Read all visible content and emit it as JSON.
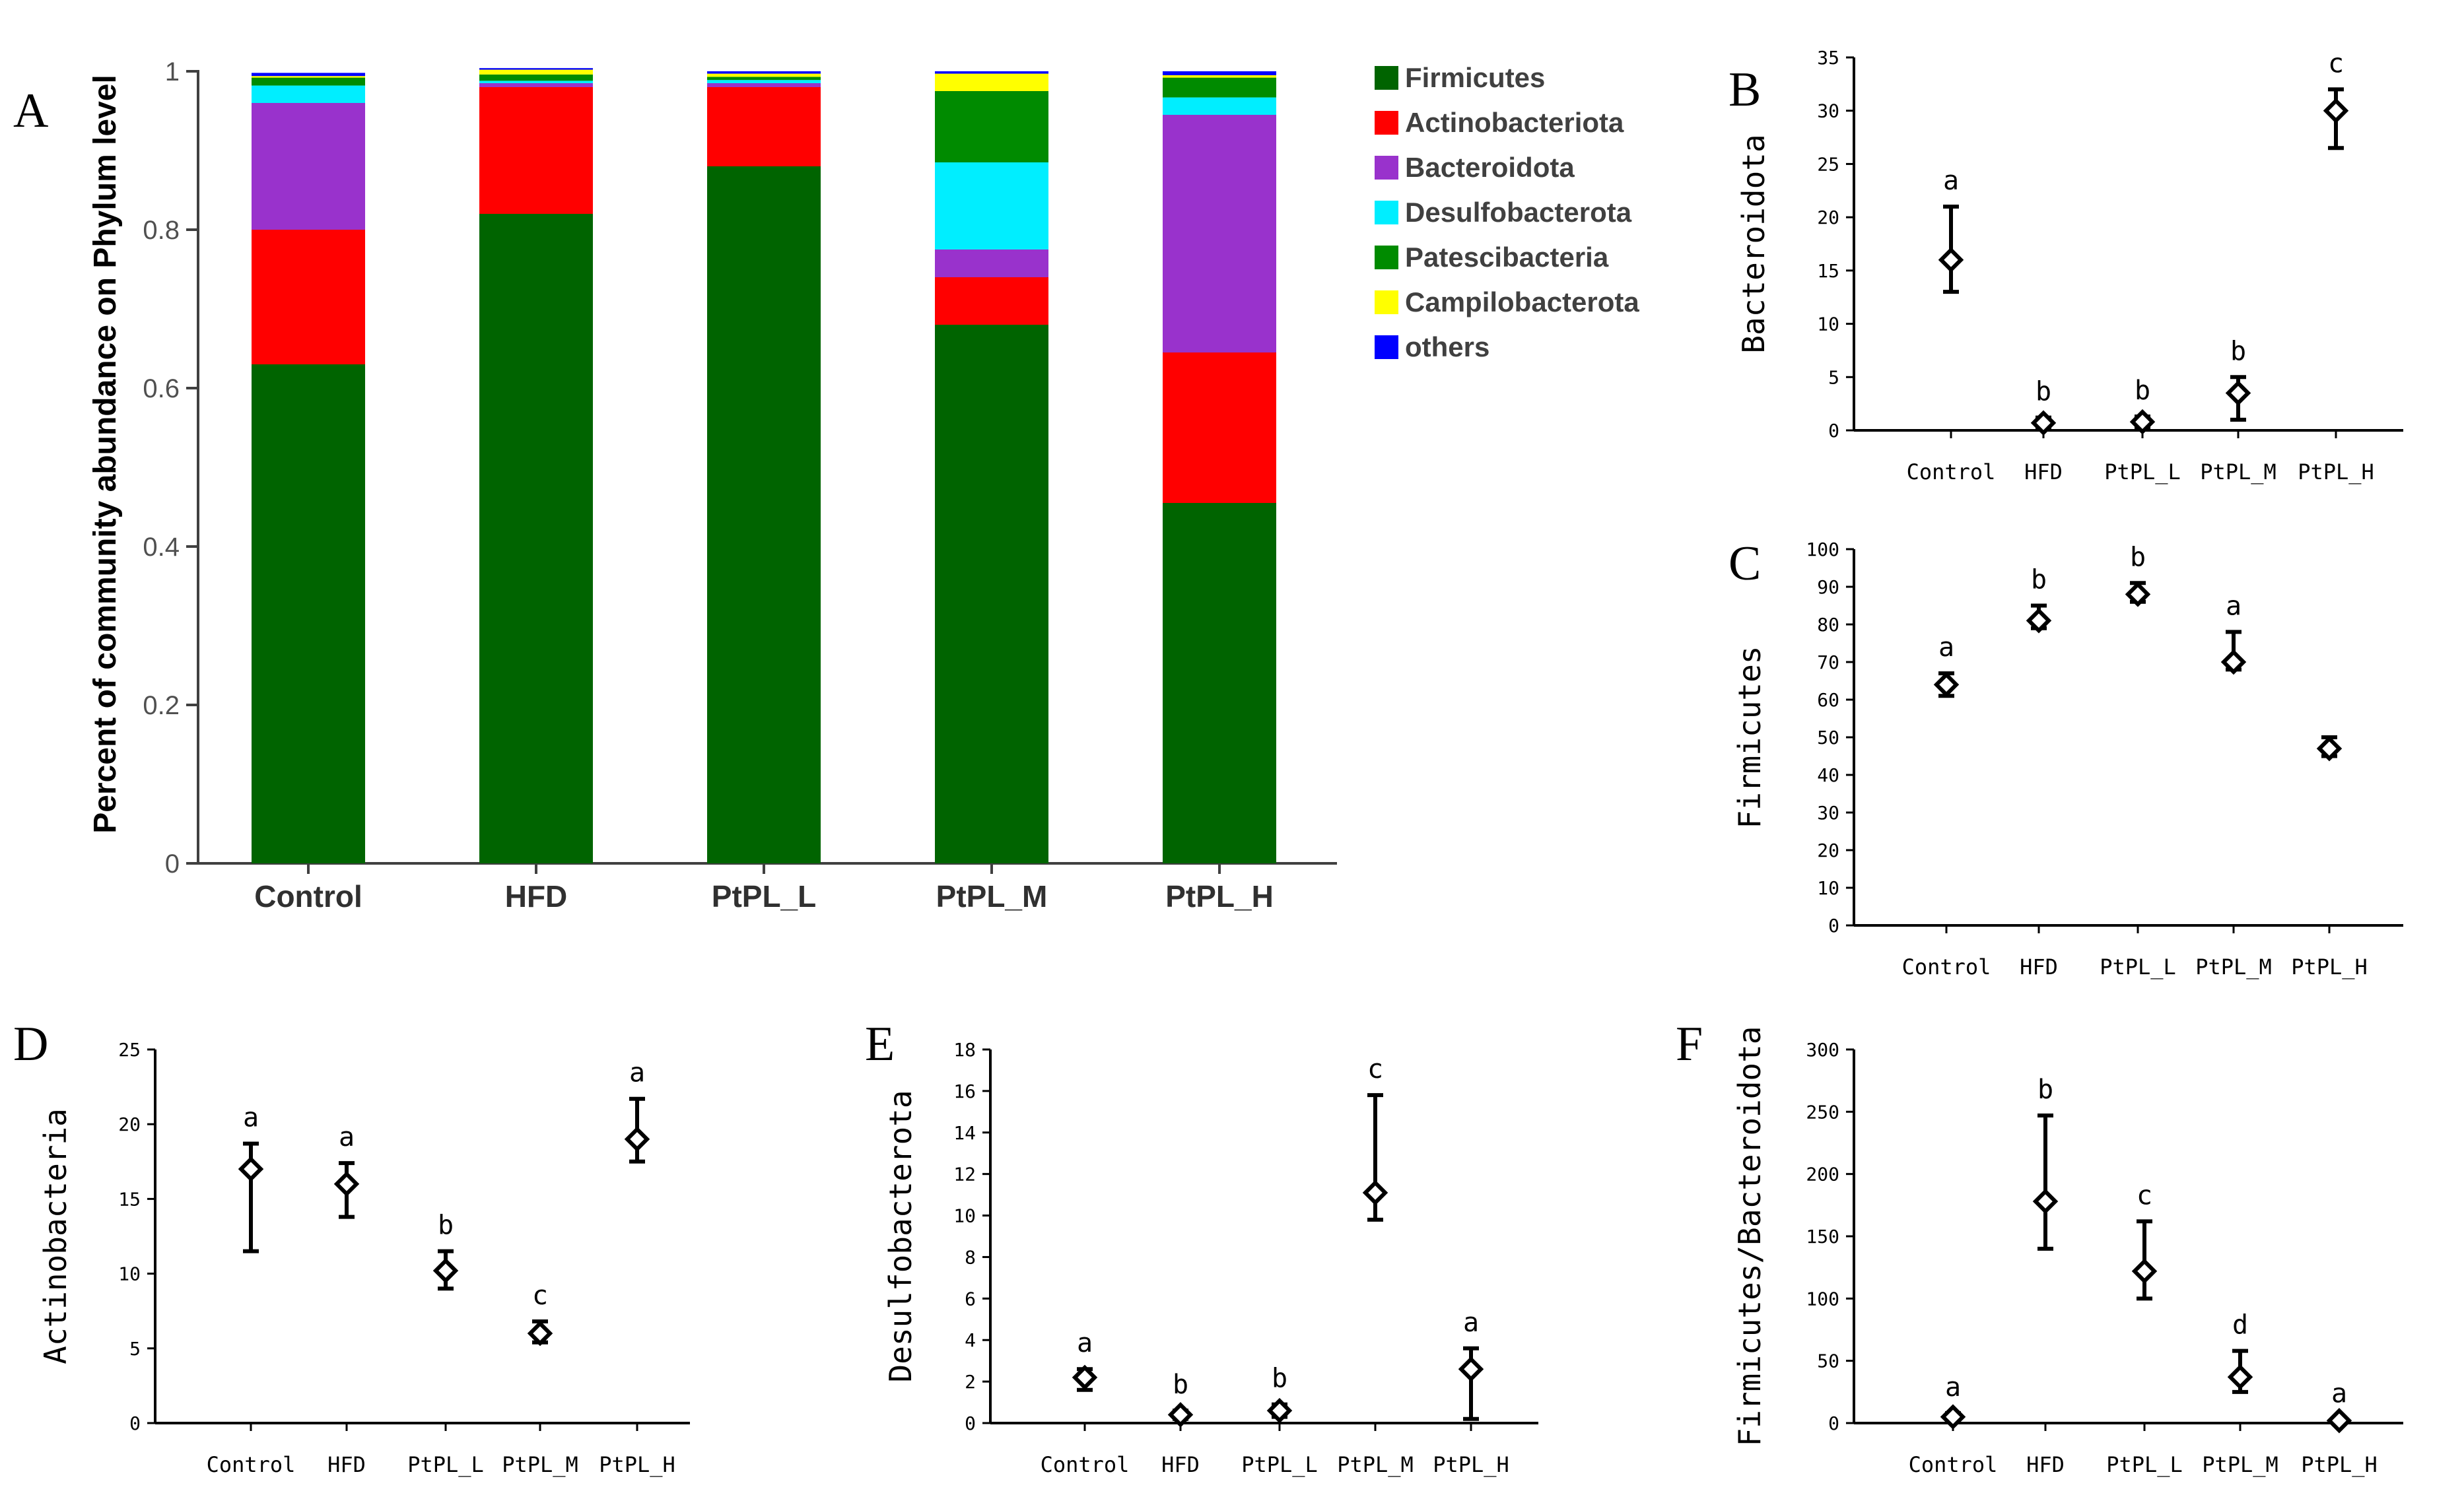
{
  "chart_data": [
    {
      "panel": "A",
      "type": "bar",
      "stacked": true,
      "ylabel": "Percent of community abundance on Phylum level",
      "ylim": [
        0,
        1
      ],
      "yticks": [
        "0",
        "0.2",
        "0.4",
        "0.6",
        "0.8",
        "1"
      ],
      "categories": [
        "Control",
        "HFD",
        "PtPL_L",
        "PtPL_M",
        "PtPL_H"
      ],
      "legend_position": "right",
      "series": [
        {
          "name": "Firmicutes",
          "color": "#006400",
          "values": [
            0.63,
            0.82,
            0.88,
            0.68,
            0.455
          ]
        },
        {
          "name": "Actinobacteriota",
          "color": "#ff0000",
          "values": [
            0.17,
            0.16,
            0.1,
            0.06,
            0.19
          ]
        },
        {
          "name": "Bacteroidota",
          "color": "#9932cc",
          "values": [
            0.16,
            0.005,
            0.005,
            0.035,
            0.3
          ]
        },
        {
          "name": "Desulfobacterota",
          "color": "#00eeff",
          "values": [
            0.022,
            0.003,
            0.004,
            0.11,
            0.022
          ]
        },
        {
          "name": "Patescibacteria",
          "color": "#008b00",
          "values": [
            0.01,
            0.008,
            0.004,
            0.09,
            0.025
          ]
        },
        {
          "name": "Campilobacterota",
          "color": "#ffff00",
          "values": [
            0.002,
            0.006,
            0.004,
            0.022,
            0.003
          ]
        },
        {
          "name": "others",
          "color": "#0000ff",
          "values": [
            0.004,
            0.002,
            0.003,
            0.003,
            0.005
          ]
        }
      ]
    },
    {
      "panel": "B",
      "type": "scatter",
      "ylabel": "Bacteroidota",
      "ylim": [
        0,
        35
      ],
      "yticks": [
        "0",
        "5",
        "10",
        "15",
        "20",
        "25",
        "30",
        "35"
      ],
      "categories": [
        "Control",
        "HFD",
        "PtPL_L",
        "PtPL_M",
        "PtPL_H"
      ],
      "values": [
        16,
        0.7,
        0.8,
        3.5,
        30
      ],
      "err_low": [
        13,
        0.2,
        0.3,
        1,
        26.5
      ],
      "err_high": [
        21,
        1.2,
        1.3,
        5,
        32
      ],
      "letters": [
        "a",
        "b",
        "b",
        "b",
        "c"
      ]
    },
    {
      "panel": "C",
      "type": "scatter",
      "ylabel": "Firmicutes",
      "ylim": [
        0,
        100
      ],
      "yticks": [
        "0",
        "10",
        "20",
        "30",
        "40",
        "50",
        "60",
        "70",
        "80",
        "90",
        "100"
      ],
      "categories": [
        "Control",
        "HFD",
        "PtPL_L",
        "PtPL_M",
        "PtPL_H"
      ],
      "values": [
        64,
        81,
        88,
        70,
        47
      ],
      "err_low": [
        61,
        79,
        86,
        68,
        45
      ],
      "err_high": [
        67,
        85,
        91,
        78,
        50
      ],
      "letters": [
        "a",
        "b",
        "b",
        "a",
        ""
      ]
    },
    {
      "panel": "D",
      "type": "scatter",
      "ylabel": "Actinobacteria",
      "ylim": [
        0,
        25
      ],
      "yticks": [
        "0",
        "5",
        "10",
        "15",
        "20",
        "25"
      ],
      "categories": [
        "Control",
        "HFD",
        "PtPL_L",
        "PtPL_M",
        "PtPL_H"
      ],
      "values": [
        17,
        16,
        10.2,
        6,
        19
      ],
      "err_low": [
        11.5,
        13.8,
        9,
        5.4,
        17.5
      ],
      "err_high": [
        18.7,
        17.4,
        11.5,
        6.8,
        21.7
      ],
      "letters": [
        "a",
        "a",
        "b",
        "c",
        "a"
      ]
    },
    {
      "panel": "E",
      "type": "scatter",
      "ylabel": "Desulfobacterota",
      "ylim": [
        0,
        18
      ],
      "yticks": [
        "0",
        "2",
        "4",
        "6",
        "8",
        "10",
        "12",
        "14",
        "16",
        "18"
      ],
      "categories": [
        "Control",
        "HFD",
        "PtPL_L",
        "PtPL_M",
        "PtPL_H"
      ],
      "values": [
        2.2,
        0.4,
        0.6,
        11.1,
        2.6
      ],
      "err_low": [
        1.6,
        0.2,
        0.3,
        9.8,
        0.2
      ],
      "err_high": [
        2.6,
        0.6,
        0.9,
        15.8,
        3.6
      ],
      "letters": [
        "a",
        "b",
        "b",
        "c",
        "a"
      ]
    },
    {
      "panel": "F",
      "type": "scatter",
      "ylabel": "Firmicutes/Bacteroidota",
      "ylim": [
        0,
        300
      ],
      "yticks": [
        "0",
        "50",
        "100",
        "150",
        "200",
        "250",
        "300"
      ],
      "categories": [
        "Control",
        "HFD",
        "PtPL_L",
        "PtPL_M",
        "PtPL_H"
      ],
      "values": [
        5,
        178,
        122,
        37,
        2
      ],
      "err_low": [
        3,
        140,
        100,
        25,
        1
      ],
      "err_high": [
        8,
        247,
        162,
        58,
        3
      ],
      "letters": [
        "a",
        "b",
        "c",
        "d",
        "a"
      ]
    }
  ]
}
